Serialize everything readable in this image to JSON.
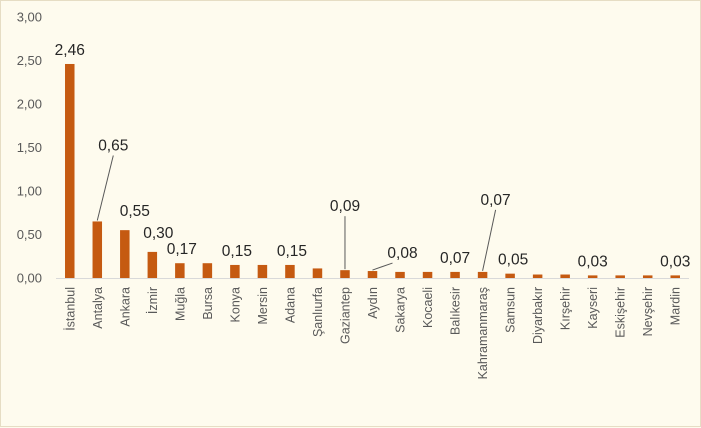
{
  "chart_data": {
    "type": "bar",
    "title": "",
    "xlabel": "",
    "ylabel": "",
    "categories": [
      "İstanbul",
      "Antalya",
      "Ankara",
      "İzmir",
      "Muğla",
      "Bursa",
      "Konya",
      "Mersin",
      "Adana",
      "Şanlıurfa",
      "Gaziantep",
      "Aydın",
      "Sakarya",
      "Kocaeli",
      "Balıkesir",
      "Kahramanmaraş",
      "Samsun",
      "Diyarbakır",
      "Kırşehir",
      "Kayseri",
      "Eskişehir",
      "Nevşehir",
      "Mardin"
    ],
    "values": [
      2.46,
      0.65,
      0.55,
      0.3,
      0.17,
      0.17,
      0.15,
      0.15,
      0.15,
      0.11,
      0.09,
      0.08,
      0.07,
      0.07,
      0.07,
      0.07,
      0.05,
      0.04,
      0.04,
      0.03,
      0.03,
      0.03,
      0.03
    ],
    "data_labels": [
      "2,46",
      "0,65",
      "0,55",
      "0,30",
      "0,17",
      null,
      "0,15",
      null,
      "0,15",
      null,
      "0,09",
      "0,08",
      null,
      null,
      "0,07",
      "0,07",
      "0,05",
      null,
      null,
      "0,03",
      null,
      null,
      "0,03"
    ],
    "ylim": [
      0,
      3
    ],
    "yticks": [
      "0,00",
      "0,50",
      "1,00",
      "1,50",
      "2,00",
      "2,50",
      "3,00"
    ],
    "legend": "none",
    "grid": false,
    "bar_color": "#c55a11",
    "leader_color": "#595959"
  }
}
